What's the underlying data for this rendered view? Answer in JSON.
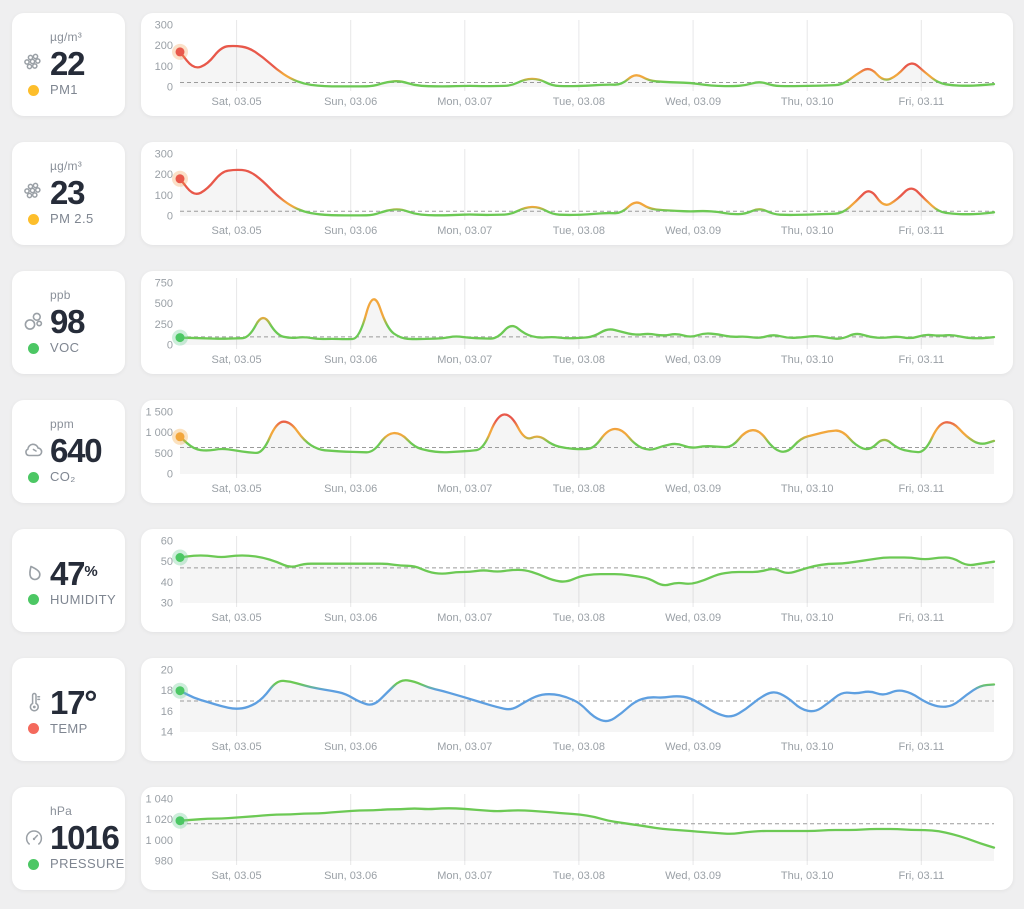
{
  "x_axis_labels": [
    "Sat, 03.05",
    "Sun, 03.06",
    "Mon, 03.07",
    "Tue, 03.08",
    "Wed, 03.09",
    "Thu, 03.10",
    "Fri, 03.11"
  ],
  "theme": {
    "green_line": "#6cc954",
    "orange_line": "#f2a73d",
    "red_line": "#e8584a",
    "blue_line": "#5e9fe0",
    "dashed_line": "#9b9b9b",
    "tick_text": "#9aa0a6",
    "card_bg": "#ffffff",
    "page_bg": "#efeff0"
  },
  "sensors": [
    {
      "unit": "µg/m³",
      "value": "22",
      "suffix": "",
      "label": "PM1",
      "icon": "particles-icon",
      "dot_color": "#fdbe2b"
    },
    {
      "unit": "µg/m³",
      "value": "23",
      "suffix": "",
      "label": "PM 2.5",
      "icon": "particles-icon",
      "dot_color": "#fdbe2b"
    },
    {
      "unit": "ppb",
      "value": "98",
      "suffix": "",
      "label": "VOC",
      "icon": "voc-icon",
      "dot_color": "#4cc764"
    },
    {
      "unit": "ppm",
      "value": "640",
      "suffix": "",
      "label": "CO₂",
      "icon": "cloud-icon",
      "dot_color": "#4cc764"
    },
    {
      "unit": "",
      "value": "47",
      "suffix": "%",
      "label": "HUMIDITY",
      "icon": "droplet-icon",
      "dot_color": "#4cc764"
    },
    {
      "unit": "",
      "value": "17°",
      "suffix": "",
      "label": "TEMP",
      "icon": "thermometer-icon",
      "dot_color": "#f4695c"
    },
    {
      "unit": "hPa",
      "value": "1016",
      "suffix": "",
      "label": "PRESSURE",
      "icon": "gauge-icon",
      "dot_color": "#4cc764"
    }
  ],
  "chart_data": [
    {
      "type": "area",
      "name": "PM1",
      "unit": "µg/m³",
      "current": 22,
      "ylim": [
        0,
        300
      ],
      "y_ticks": [
        {
          "v": 0,
          "label": "0"
        },
        {
          "v": 100,
          "label": "100"
        },
        {
          "v": 200,
          "label": "200"
        },
        {
          "v": 300,
          "label": "300"
        }
      ],
      "dashed_line_value": 22,
      "marker": {
        "value": 170,
        "color": "#e8584b",
        "halo": "rgba(242,153,74,0.30)"
      },
      "line_color_stops": [
        {
          "t": 0,
          "c": "#6cc954"
        },
        {
          "t": 0.09,
          "c": "#6cc954"
        },
        {
          "t": 0.15,
          "c": "#f2a73d"
        },
        {
          "t": 0.21,
          "c": "#f2a73d"
        },
        {
          "t": 0.32,
          "c": "#e8584a"
        },
        {
          "t": 1,
          "c": "#e8584a"
        }
      ],
      "values": [
        170,
        85,
        110,
        195,
        200,
        190,
        145,
        85,
        40,
        15,
        6,
        3,
        3,
        3,
        4,
        25,
        30,
        8,
        4,
        3,
        4,
        6,
        4,
        5,
        6,
        38,
        40,
        6,
        4,
        5,
        8,
        12,
        10,
        68,
        30,
        25,
        22,
        20,
        10,
        5,
        4,
        8,
        28,
        6,
        4,
        5,
        6,
        8,
        10,
        60,
        100,
        25,
        55,
        130,
        70,
        18,
        8,
        6,
        8,
        14
      ]
    },
    {
      "type": "area",
      "name": "PM 2.5",
      "unit": "µg/m³",
      "current": 23,
      "ylim": [
        0,
        300
      ],
      "y_ticks": [
        {
          "v": 0,
          "label": "0"
        },
        {
          "v": 100,
          "label": "100"
        },
        {
          "v": 200,
          "label": "200"
        },
        {
          "v": 300,
          "label": "300"
        }
      ],
      "dashed_line_value": 23,
      "marker": {
        "value": 180,
        "color": "#e8584b",
        "halo": "rgba(242,153,74,0.30)"
      },
      "line_color_stops": [
        {
          "t": 0,
          "c": "#6cc954"
        },
        {
          "t": 0.09,
          "c": "#6cc954"
        },
        {
          "t": 0.15,
          "c": "#f2a73d"
        },
        {
          "t": 0.21,
          "c": "#f2a73d"
        },
        {
          "t": 0.32,
          "c": "#e8584a"
        },
        {
          "t": 1,
          "c": "#e8584a"
        }
      ],
      "values": [
        180,
        95,
        130,
        215,
        225,
        220,
        170,
        100,
        50,
        20,
        8,
        4,
        3,
        3,
        4,
        28,
        35,
        10,
        4,
        3,
        5,
        8,
        5,
        6,
        8,
        42,
        45,
        8,
        5,
        6,
        10,
        15,
        12,
        78,
        35,
        28,
        25,
        22,
        25,
        20,
        8,
        10,
        40,
        8,
        5,
        6,
        8,
        10,
        12,
        70,
        140,
        40,
        80,
        150,
        80,
        20,
        10,
        8,
        10,
        18
      ]
    },
    {
      "type": "area",
      "name": "VOC",
      "unit": "ppb",
      "current": 98,
      "ylim": [
        0,
        750
      ],
      "y_ticks": [
        {
          "v": 0,
          "label": "0"
        },
        {
          "v": 250,
          "label": "250"
        },
        {
          "v": 500,
          "label": "500"
        },
        {
          "v": 750,
          "label": "750"
        }
      ],
      "dashed_line_value": 98,
      "marker": {
        "value": 90,
        "color": "#4cc764",
        "halo": "rgba(111,207,151,0.35)"
      },
      "line_color_stops": [
        {
          "t": 0,
          "c": "#6cc954"
        },
        {
          "t": 0.3,
          "c": "#6cc954"
        },
        {
          "t": 0.46,
          "c": "#f2a73d"
        },
        {
          "t": 1,
          "c": "#f2a73d"
        }
      ],
      "values": [
        90,
        85,
        80,
        75,
        80,
        85,
        400,
        120,
        80,
        100,
        70,
        75,
        70,
        75,
        690,
        200,
        80,
        70,
        75,
        80,
        110,
        85,
        80,
        75,
        270,
        130,
        85,
        100,
        80,
        85,
        100,
        205,
        160,
        120,
        140,
        110,
        140,
        90,
        145,
        130,
        95,
        105,
        80,
        130,
        85,
        90,
        115,
        85,
        70,
        150,
        95,
        85,
        105,
        75,
        130,
        110,
        125,
        85,
        80,
        95
      ]
    },
    {
      "type": "area",
      "name": "CO₂",
      "unit": "ppm",
      "current": 640,
      "ylim": [
        0,
        1500
      ],
      "y_ticks": [
        {
          "v": 0,
          "label": "0"
        },
        {
          "v": 500,
          "label": "500"
        },
        {
          "v": 1000,
          "label": "1 000"
        },
        {
          "v": 1500,
          "label": "1 500"
        }
      ],
      "dashed_line_value": 640,
      "marker": {
        "value": 900,
        "color": "#f2a63c",
        "halo": "rgba(242,166,60,0.32)"
      },
      "line_color_stops": [
        {
          "t": 0,
          "c": "#6cc954"
        },
        {
          "t": 0.5,
          "c": "#6cc954"
        },
        {
          "t": 0.62,
          "c": "#f2a73d"
        },
        {
          "t": 0.72,
          "c": "#f2a73d"
        },
        {
          "t": 0.86,
          "c": "#e8584a"
        },
        {
          "t": 1,
          "c": "#e8584a"
        }
      ],
      "values": [
        900,
        600,
        560,
        620,
        570,
        520,
        500,
        1260,
        1270,
        800,
        590,
        560,
        540,
        530,
        520,
        980,
        1000,
        650,
        560,
        520,
        540,
        560,
        600,
        1430,
        1450,
        800,
        950,
        700,
        620,
        600,
        610,
        1080,
        1100,
        700,
        560,
        680,
        750,
        620,
        680,
        660,
        640,
        1050,
        1070,
        600,
        500,
        870,
        950,
        1040,
        1060,
        680,
        560,
        900,
        620,
        540,
        520,
        1230,
        1270,
        900,
        700,
        800
      ]
    },
    {
      "type": "area",
      "name": "HUMIDITY",
      "unit": "%",
      "current": 47,
      "ylim": [
        30,
        60
      ],
      "y_ticks": [
        {
          "v": 30,
          "label": "30"
        },
        {
          "v": 40,
          "label": "40"
        },
        {
          "v": 50,
          "label": "50"
        },
        {
          "v": 60,
          "label": "60"
        }
      ],
      "dashed_line_value": 47,
      "marker": {
        "value": 52,
        "color": "#4cc764",
        "halo": "rgba(111,207,151,0.35)"
      },
      "line_color_stops": [
        {
          "t": 0,
          "c": "#6cc954"
        },
        {
          "t": 1,
          "c": "#6cc954"
        }
      ],
      "values": [
        52,
        53,
        53,
        52,
        53,
        53,
        52,
        50,
        47,
        49,
        49,
        49,
        49,
        49,
        49,
        49,
        48,
        48,
        45,
        44,
        45,
        45,
        46,
        45,
        46,
        46,
        44,
        41,
        40,
        43,
        44,
        44,
        44,
        43,
        42,
        38,
        40,
        39,
        41,
        44,
        45,
        45,
        45,
        47,
        44,
        46,
        48,
        49,
        49,
        50,
        51,
        52,
        52,
        52,
        51,
        52,
        52,
        48,
        49,
        50
      ]
    },
    {
      "type": "area",
      "name": "TEMP",
      "unit": "°",
      "current": 17,
      "ylim": [
        14,
        20
      ],
      "y_ticks": [
        {
          "v": 14,
          "label": "14"
        },
        {
          "v": 16,
          "label": "16"
        },
        {
          "v": 18,
          "label": "18"
        },
        {
          "v": 20,
          "label": "20"
        }
      ],
      "dashed_line_value": 17,
      "marker": {
        "value": 18,
        "color": "#4cc764",
        "halo": "rgba(111,207,151,0.35)"
      },
      "line_color_stops": [
        {
          "t": 0,
          "c": "#5e9fe0"
        },
        {
          "t": 0.68,
          "c": "#5e9fe0"
        },
        {
          "t": 0.78,
          "c": "#6cc954"
        },
        {
          "t": 1,
          "c": "#6cc954"
        }
      ],
      "values": [
        18,
        17.3,
        16.9,
        16.5,
        16.2,
        16.4,
        17.2,
        19,
        18.9,
        18.5,
        18.2,
        18,
        17.7,
        16.9,
        16.5,
        17.8,
        19.1,
        18.9,
        18.3,
        18,
        17.6,
        17.2,
        16.8,
        16.4,
        16.1,
        16.9,
        17.6,
        17.7,
        17.4,
        16.8,
        15.4,
        14.9,
        15.8,
        17,
        17.4,
        17.3,
        17.5,
        17.3,
        16.5,
        15.7,
        15.4,
        16.2,
        17.3,
        18,
        17.4,
        16.2,
        15.9,
        16.8,
        17.9,
        17.7,
        18,
        17.5,
        18.1,
        17.8,
        16.9,
        16.4,
        16.5,
        17.6,
        18.5,
        18.6
      ]
    },
    {
      "type": "area",
      "name": "PRESSURE",
      "unit": "hPa",
      "current": 1016,
      "ylim": [
        980,
        1040
      ],
      "y_ticks": [
        {
          "v": 980,
          "label": "980"
        },
        {
          "v": 1000,
          "label": "1 000"
        },
        {
          "v": 1020,
          "label": "1 020"
        },
        {
          "v": 1040,
          "label": "1 040"
        }
      ],
      "dashed_line_value": 1016,
      "marker": {
        "value": 1019,
        "color": "#4cc764",
        "halo": "rgba(111,207,151,0.35)"
      },
      "line_color_stops": [
        {
          "t": 0,
          "c": "#6cc954"
        },
        {
          "t": 1,
          "c": "#6cc954"
        }
      ],
      "values": [
        1019,
        1020,
        1021,
        1021,
        1022,
        1023,
        1024,
        1025,
        1025,
        1026,
        1026,
        1027,
        1028,
        1029,
        1029,
        1030,
        1030,
        1031,
        1030,
        1031,
        1031,
        1030,
        1029,
        1028,
        1029,
        1029,
        1028,
        1027,
        1026,
        1025,
        1023,
        1019,
        1017,
        1015,
        1013,
        1011,
        1010,
        1009,
        1008,
        1007,
        1006,
        1008,
        1009,
        1009,
        1009,
        1009,
        1009,
        1010,
        1010,
        1010,
        1011,
        1011,
        1011,
        1010,
        1010,
        1009,
        1006,
        1002,
        997,
        993
      ]
    }
  ]
}
